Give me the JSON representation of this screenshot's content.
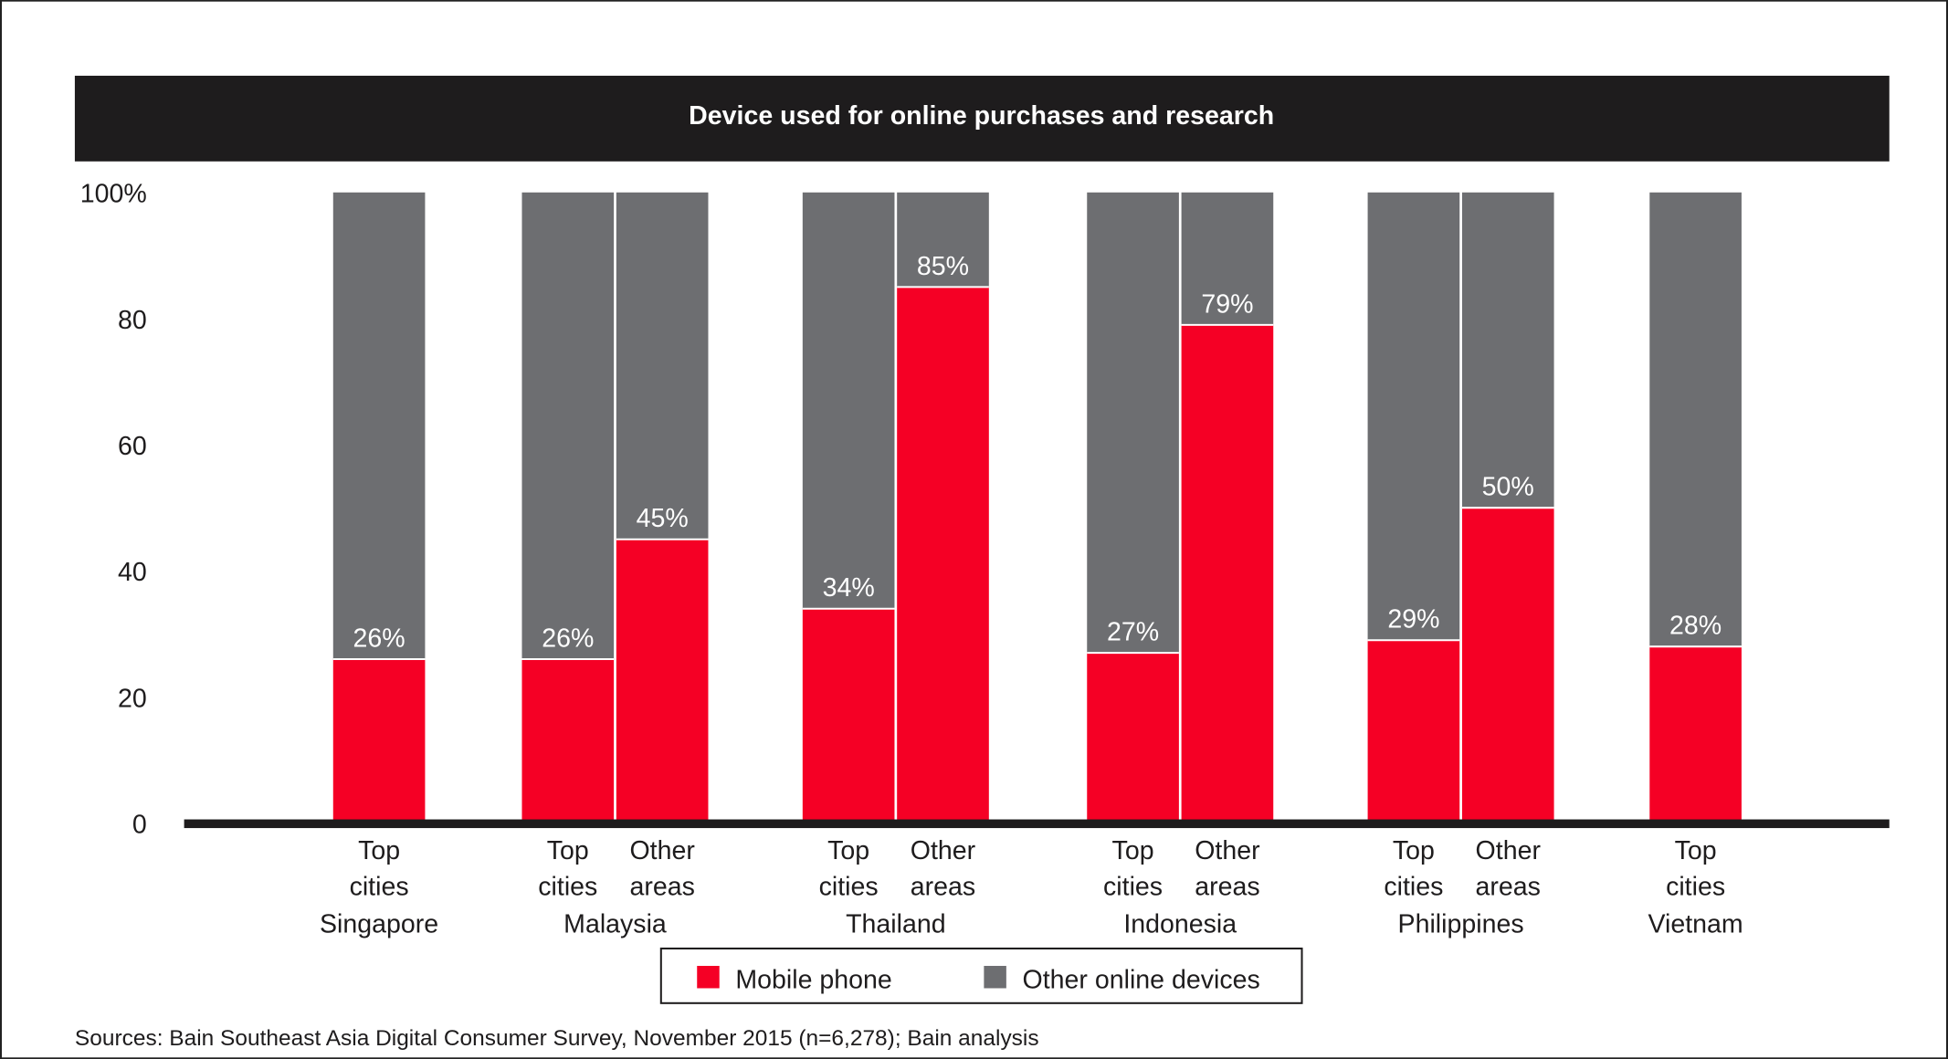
{
  "chart_data": {
    "type": "bar",
    "stacked": true,
    "title": "Device used for online purchases and research",
    "ylim": [
      0,
      100
    ],
    "yticks": [
      "0",
      "20",
      "40",
      "60",
      "80",
      "100%"
    ],
    "ytick_values": [
      0,
      20,
      40,
      60,
      80,
      100
    ],
    "grid": false,
    "groups": [
      {
        "country": "Singapore",
        "bars": [
          {
            "label": [
              "Top",
              "cities"
            ],
            "mobile": 26,
            "value_label": "26%"
          }
        ]
      },
      {
        "country": "Malaysia",
        "bars": [
          {
            "label": [
              "Top",
              "cities"
            ],
            "mobile": 26,
            "value_label": "26%"
          },
          {
            "label": [
              "Other",
              "areas"
            ],
            "mobile": 45,
            "value_label": "45%"
          }
        ]
      },
      {
        "country": "Thailand",
        "bars": [
          {
            "label": [
              "Top",
              "cities"
            ],
            "mobile": 34,
            "value_label": "34%"
          },
          {
            "label": [
              "Other",
              "areas"
            ],
            "mobile": 85,
            "value_label": "85%"
          }
        ]
      },
      {
        "country": "Indonesia",
        "bars": [
          {
            "label": [
              "Top",
              "cities"
            ],
            "mobile": 27,
            "value_label": "27%"
          },
          {
            "label": [
              "Other",
              "areas"
            ],
            "mobile": 79,
            "value_label": "79%"
          }
        ]
      },
      {
        "country": "Philippines",
        "bars": [
          {
            "label": [
              "Top",
              "cities"
            ],
            "mobile": 29,
            "value_label": "29%"
          },
          {
            "label": [
              "Other",
              "areas"
            ],
            "mobile": 50,
            "value_label": "50%"
          }
        ]
      },
      {
        "country": "Vietnam",
        "bars": [
          {
            "label": [
              "Top",
              "cities"
            ],
            "mobile": 28,
            "value_label": "28%"
          }
        ]
      }
    ],
    "series": [
      {
        "name": "Mobile phone",
        "color": "#f50025"
      },
      {
        "name": "Other online devices",
        "color": "#6d6e71"
      }
    ],
    "legend_position": "bottom-center",
    "source": "Sources: Bain Southeast Asia Digital Consumer Survey, November 2015 (n=6,278); Bain analysis"
  },
  "colors": {
    "title_bar": "#1e1c1d",
    "axis": "#1e1c1d"
  }
}
